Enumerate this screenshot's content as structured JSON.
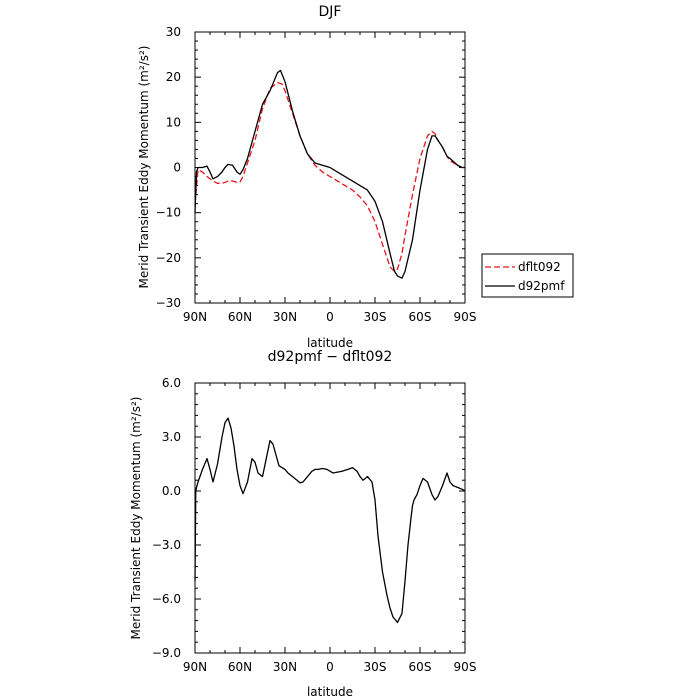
{
  "chart_data": [
    {
      "type": "line",
      "title": "DJF",
      "xlabel": "latitude",
      "ylabel": "Merid Transient Eddy Momentum (m²/s²)",
      "xlim": [
        90,
        -90
      ],
      "ylim": [
        -30,
        30
      ],
      "xticks": [
        90,
        60,
        30,
        0,
        -30,
        -60,
        -90
      ],
      "xtick_labels": [
        "90N",
        "60N",
        "30N",
        "0",
        "30S",
        "60S",
        "90S"
      ],
      "yticks": [
        -30,
        -20,
        -10,
        0,
        10,
        20,
        30
      ],
      "ytick_labels": [
        "−30",
        "−20",
        "−10",
        "0",
        "10",
        "20",
        "30"
      ],
      "legend_position": "right",
      "series": [
        {
          "name": "dflt092",
          "color": "#e8141c",
          "dash": "dashed",
          "x": [
            90,
            88,
            85,
            82,
            80,
            78,
            75,
            72,
            70,
            68,
            65,
            62,
            60,
            58,
            55,
            50,
            45,
            40,
            35,
            32,
            30,
            25,
            20,
            15,
            10,
            5,
            0,
            -5,
            -10,
            -15,
            -20,
            -25,
            -30,
            -35,
            -40,
            -43,
            -45,
            -48,
            -50,
            -55,
            -60,
            -65,
            -68,
            -70,
            -72,
            -75,
            -78,
            -80,
            -85,
            -88,
            -90
          ],
          "y": [
            -8,
            -0.5,
            -1,
            -2,
            -2.5,
            -3,
            -3.5,
            -3.5,
            -3.3,
            -3,
            -3,
            -3.3,
            -3.2,
            -2,
            1,
            6,
            13,
            17.5,
            18.8,
            18.5,
            17,
            12,
            7,
            3,
            0.5,
            -1,
            -2,
            -3,
            -4,
            -5,
            -6.5,
            -8.5,
            -12,
            -17,
            -22,
            -23,
            -22.5,
            -19,
            -15,
            -6,
            2,
            7,
            8,
            7.5,
            6,
            4.5,
            2.5,
            1.5,
            0.5,
            0,
            0
          ]
        },
        {
          "name": "d92pmf",
          "color": "#000000",
          "dash": "solid",
          "x": [
            90,
            89,
            88,
            85,
            82,
            80,
            78,
            75,
            72,
            70,
            68,
            65,
            62,
            60,
            58,
            55,
            50,
            45,
            40,
            35,
            33,
            30,
            25,
            20,
            15,
            10,
            5,
            0,
            -5,
            -10,
            -15,
            -20,
            -25,
            -30,
            -35,
            -40,
            -43,
            -45,
            -48,
            -50,
            -55,
            -60,
            -65,
            -68,
            -70,
            -72,
            -75,
            -78,
            -80,
            -85,
            -88,
            -90
          ],
          "y": [
            -10,
            -1,
            0,
            0,
            0.3,
            -1,
            -2.5,
            -2,
            -1,
            0,
            0.7,
            0.5,
            -1,
            -1.5,
            -0.5,
            2,
            8,
            14,
            17,
            21,
            21.5,
            19,
            12.5,
            7,
            3,
            1,
            0.5,
            0,
            -1,
            -2,
            -3,
            -4,
            -5,
            -7.5,
            -12,
            -19,
            -23,
            -24,
            -24.5,
            -23,
            -16,
            -5,
            4,
            7,
            7,
            6,
            4.5,
            2.5,
            2,
            0.5,
            0,
            0
          ]
        }
      ]
    },
    {
      "type": "line",
      "title": "d92pmf − dflt092",
      "xlabel": "latitude",
      "ylabel": "Merid Transient Eddy Momentum (m²/s²)",
      "xlim": [
        90,
        -90
      ],
      "ylim": [
        -9,
        6
      ],
      "xticks": [
        90,
        60,
        30,
        0,
        -30,
        -60,
        -90
      ],
      "xtick_labels": [
        "90N",
        "60N",
        "30N",
        "0",
        "30S",
        "60S",
        "90S"
      ],
      "yticks": [
        -9,
        -6,
        -3,
        0,
        3,
        6
      ],
      "ytick_labels": [
        "−9.0",
        "−6.0",
        "−3.0",
        "0.0",
        "3.0",
        "6.0"
      ],
      "series": [
        {
          "name": "",
          "color": "#000000",
          "dash": "solid",
          "x": [
            90,
            89.5,
            89,
            88,
            85,
            82,
            80,
            78,
            75,
            72,
            70,
            68,
            66,
            64,
            62,
            60,
            58,
            55,
            52,
            50,
            48,
            45,
            42,
            40,
            38,
            36,
            34,
            32,
            30,
            28,
            25,
            22,
            20,
            18,
            15,
            12,
            10,
            8,
            5,
            2,
            0,
            -2,
            -5,
            -8,
            -10,
            -12,
            -15,
            -18,
            -20,
            -22,
            -25,
            -28,
            -30,
            -32,
            -35,
            -38,
            -40,
            -42,
            -45,
            -48,
            -50,
            -52,
            -54,
            -55,
            -56,
            -58,
            -60,
            -62,
            -65,
            -68,
            -70,
            -72,
            -75,
            -78,
            -80,
            -82,
            -85,
            -88,
            -89,
            -90
          ],
          "y": [
            -5,
            0,
            0.2,
            0.5,
            1.2,
            1.8,
            1.2,
            0.5,
            1.5,
            3,
            3.8,
            4.05,
            3.5,
            2.5,
            1.2,
            0.3,
            -0.15,
            0.5,
            1.8,
            1.6,
            1,
            0.8,
            2,
            2.8,
            2.6,
            2,
            1.4,
            1.3,
            1.2,
            1.0,
            0.8,
            0.6,
            0.45,
            0.5,
            0.8,
            1.1,
            1.2,
            1.2,
            1.25,
            1.2,
            1.1,
            1.0,
            1.05,
            1.1,
            1.15,
            1.2,
            1.3,
            1.1,
            0.8,
            0.6,
            0.8,
            0.5,
            -0.5,
            -2.5,
            -4.5,
            -5.8,
            -6.5,
            -7.0,
            -7.3,
            -6.8,
            -5,
            -3,
            -1.5,
            -0.8,
            -0.5,
            -0.2,
            0.3,
            0.7,
            0.5,
            -0.2,
            -0.5,
            -0.3,
            0.3,
            1.0,
            0.5,
            0.3,
            0.2,
            0.1,
            0.05,
            0
          ],
          "_note_unused": null
        }
      ]
    }
  ]
}
